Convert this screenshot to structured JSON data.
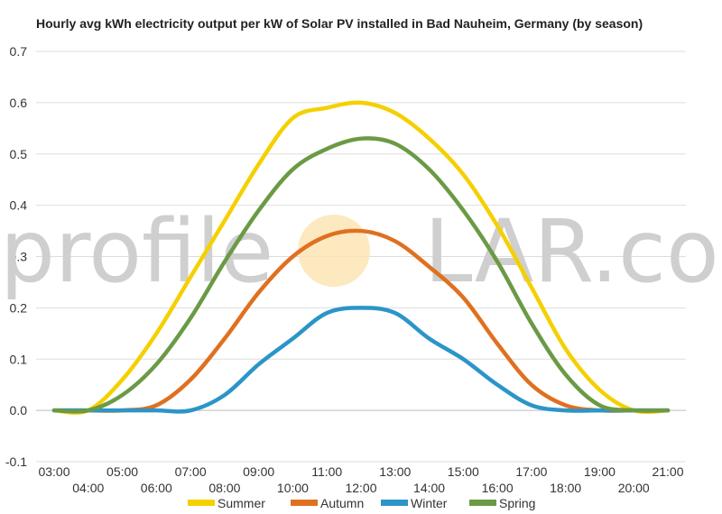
{
  "chart_data": {
    "type": "line",
    "title": "Hourly avg kWh electricity output per kW of Solar PV installed in Bad Nauheim, Germany (by season)",
    "xlabel": "",
    "ylabel": "",
    "x": [
      "03:00",
      "04:00",
      "05:00",
      "06:00",
      "07:00",
      "08:00",
      "09:00",
      "10:00",
      "11:00",
      "12:00",
      "13:00",
      "14:00",
      "15:00",
      "16:00",
      "17:00",
      "18:00",
      "19:00",
      "20:00",
      "21:00"
    ],
    "ylim": [
      -0.1,
      0.7
    ],
    "yticks": [
      "-0.1",
      "0.0",
      "0.1",
      "0.2",
      "0.3",
      "0.4",
      "0.5",
      "0.6",
      "0.7"
    ],
    "grid": true,
    "legend_position": "bottom",
    "series": [
      {
        "name": "Summer",
        "color": "#f5d000",
        "values": [
          0.0,
          0.0,
          0.06,
          0.15,
          0.26,
          0.37,
          0.48,
          0.57,
          0.59,
          0.6,
          0.58,
          0.53,
          0.46,
          0.36,
          0.24,
          0.12,
          0.04,
          0.0,
          0.0
        ]
      },
      {
        "name": "Autumn",
        "color": "#e07020",
        "values": [
          0.0,
          0.0,
          0.0,
          0.01,
          0.06,
          0.14,
          0.23,
          0.3,
          0.34,
          0.35,
          0.33,
          0.28,
          0.22,
          0.13,
          0.05,
          0.01,
          0.0,
          0.0,
          0.0
        ]
      },
      {
        "name": "Winter",
        "color": "#2b95c8",
        "values": [
          0.0,
          0.0,
          0.0,
          0.0,
          0.0,
          0.03,
          0.09,
          0.14,
          0.19,
          0.2,
          0.19,
          0.14,
          0.1,
          0.05,
          0.01,
          0.0,
          0.0,
          0.0,
          0.0
        ]
      },
      {
        "name": "Spring",
        "color": "#6b9a45",
        "values": [
          0.0,
          0.0,
          0.03,
          0.09,
          0.18,
          0.29,
          0.39,
          0.47,
          0.51,
          0.53,
          0.52,
          0.47,
          0.39,
          0.29,
          0.17,
          0.07,
          0.01,
          0.0,
          0.0
        ]
      }
    ]
  },
  "watermark": {
    "left": "profile",
    "sun": "SO",
    "right": "LAR.com"
  }
}
